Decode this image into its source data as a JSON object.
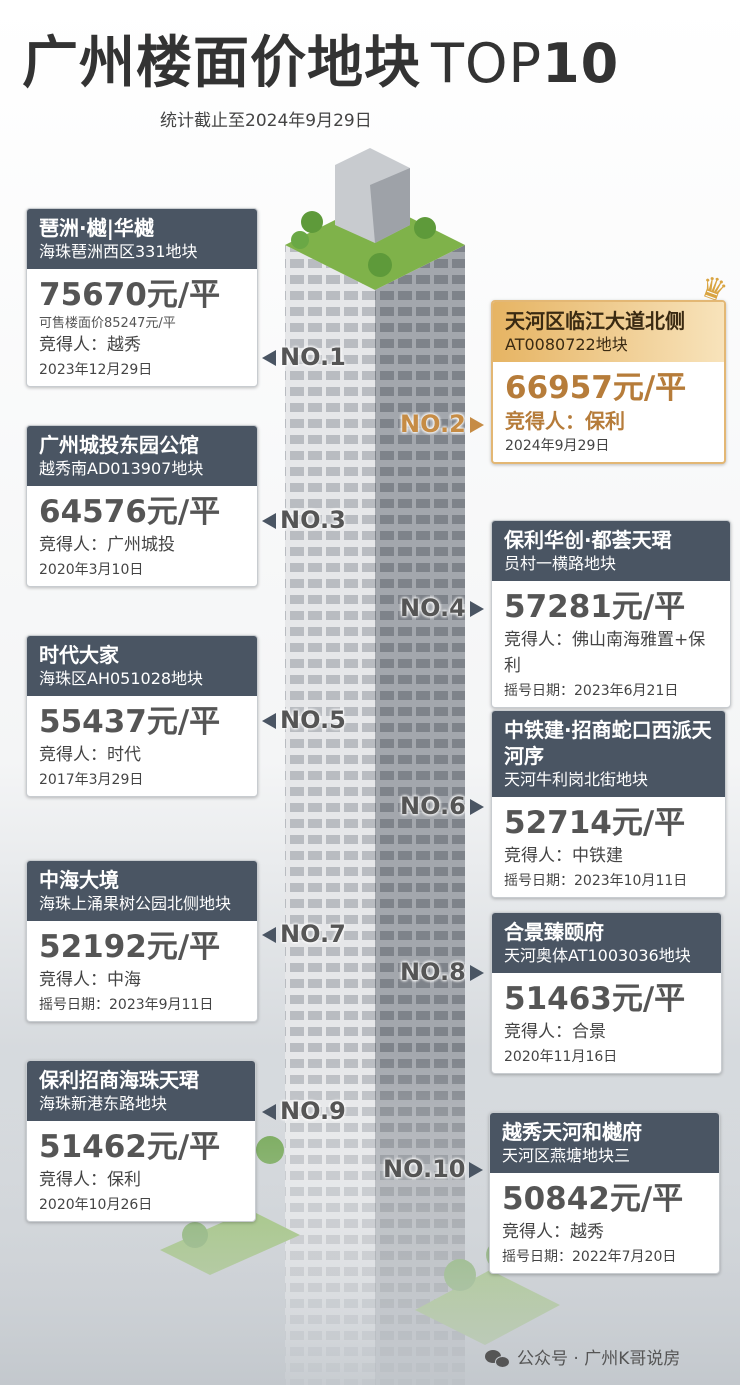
{
  "header": {
    "title": "广州楼面价地块",
    "title_en_light": "TOP",
    "title_en_bold": "10",
    "subtitle": "统计截止至2024年9月29日"
  },
  "colors": {
    "card_header": "#4a5563",
    "gold": "#c68c45",
    "greenery": "#7fb24a"
  },
  "cards": [
    {
      "rank": "NO.1",
      "title": "琶洲·樾|华樾",
      "subtitle": "海珠琶洲西区331地块",
      "price": "75670元/平",
      "extra": "可售楼面价85247元/平",
      "winner": "竞得人：越秀",
      "date": "2023年12月29日"
    },
    {
      "rank": "NO.2",
      "title": "天河区临江大道北侧",
      "subtitle": "AT0080722地块",
      "price": "66957元/平",
      "winner": "竞得人：保利",
      "date": "2024年9月29日",
      "highlight": true
    },
    {
      "rank": "NO.3",
      "title": "广州城投东园公馆",
      "subtitle": "越秀南AD013907地块",
      "price": "64576元/平",
      "winner": "竞得人：广州城投",
      "date": "2020年3月10日"
    },
    {
      "rank": "NO.4",
      "title": "保利华创·都荟天珺",
      "subtitle": "员村一横路地块",
      "price": "57281元/平",
      "winner": "竞得人：佛山南海雅置+保利",
      "date": "摇号日期：2023年6月21日"
    },
    {
      "rank": "NO.5",
      "title": "时代大家",
      "subtitle": "海珠区AH051028地块",
      "price": "55437元/平",
      "winner": "竞得人：时代",
      "date": "2017年3月29日"
    },
    {
      "rank": "NO.6",
      "title": "中铁建·招商蛇口西派天河序",
      "subtitle": "天河牛利岗北街地块",
      "price": "52714元/平",
      "winner": "竞得人：中铁建",
      "date": "摇号日期：2023年10月11日"
    },
    {
      "rank": "NO.7",
      "title": "中海大境",
      "subtitle": "海珠上涌果树公园北侧地块",
      "price": "52192元/平",
      "winner": "竞得人：中海",
      "date": "摇号日期：2023年9月11日"
    },
    {
      "rank": "NO.8",
      "title": "合景臻颐府",
      "subtitle": "天河奥体AT1003036地块",
      "price": "51463元/平",
      "winner": "竞得人：合景",
      "date": "2020年11月16日"
    },
    {
      "rank": "NO.9",
      "title": "保利招商海珠天珺",
      "subtitle": "海珠新港东路地块",
      "price": "51462元/平",
      "winner": "竞得人：保利",
      "date": "2020年10月26日"
    },
    {
      "rank": "NO.10",
      "title": "越秀天河和樾府",
      "subtitle": "天河区燕塘地块三",
      "price": "50842元/平",
      "winner": "竞得人：越秀",
      "date": "摇号日期：2022年7月20日"
    }
  ],
  "footer": {
    "icon": "wechat-icon",
    "text": "公众号 · 广州K哥说房"
  }
}
